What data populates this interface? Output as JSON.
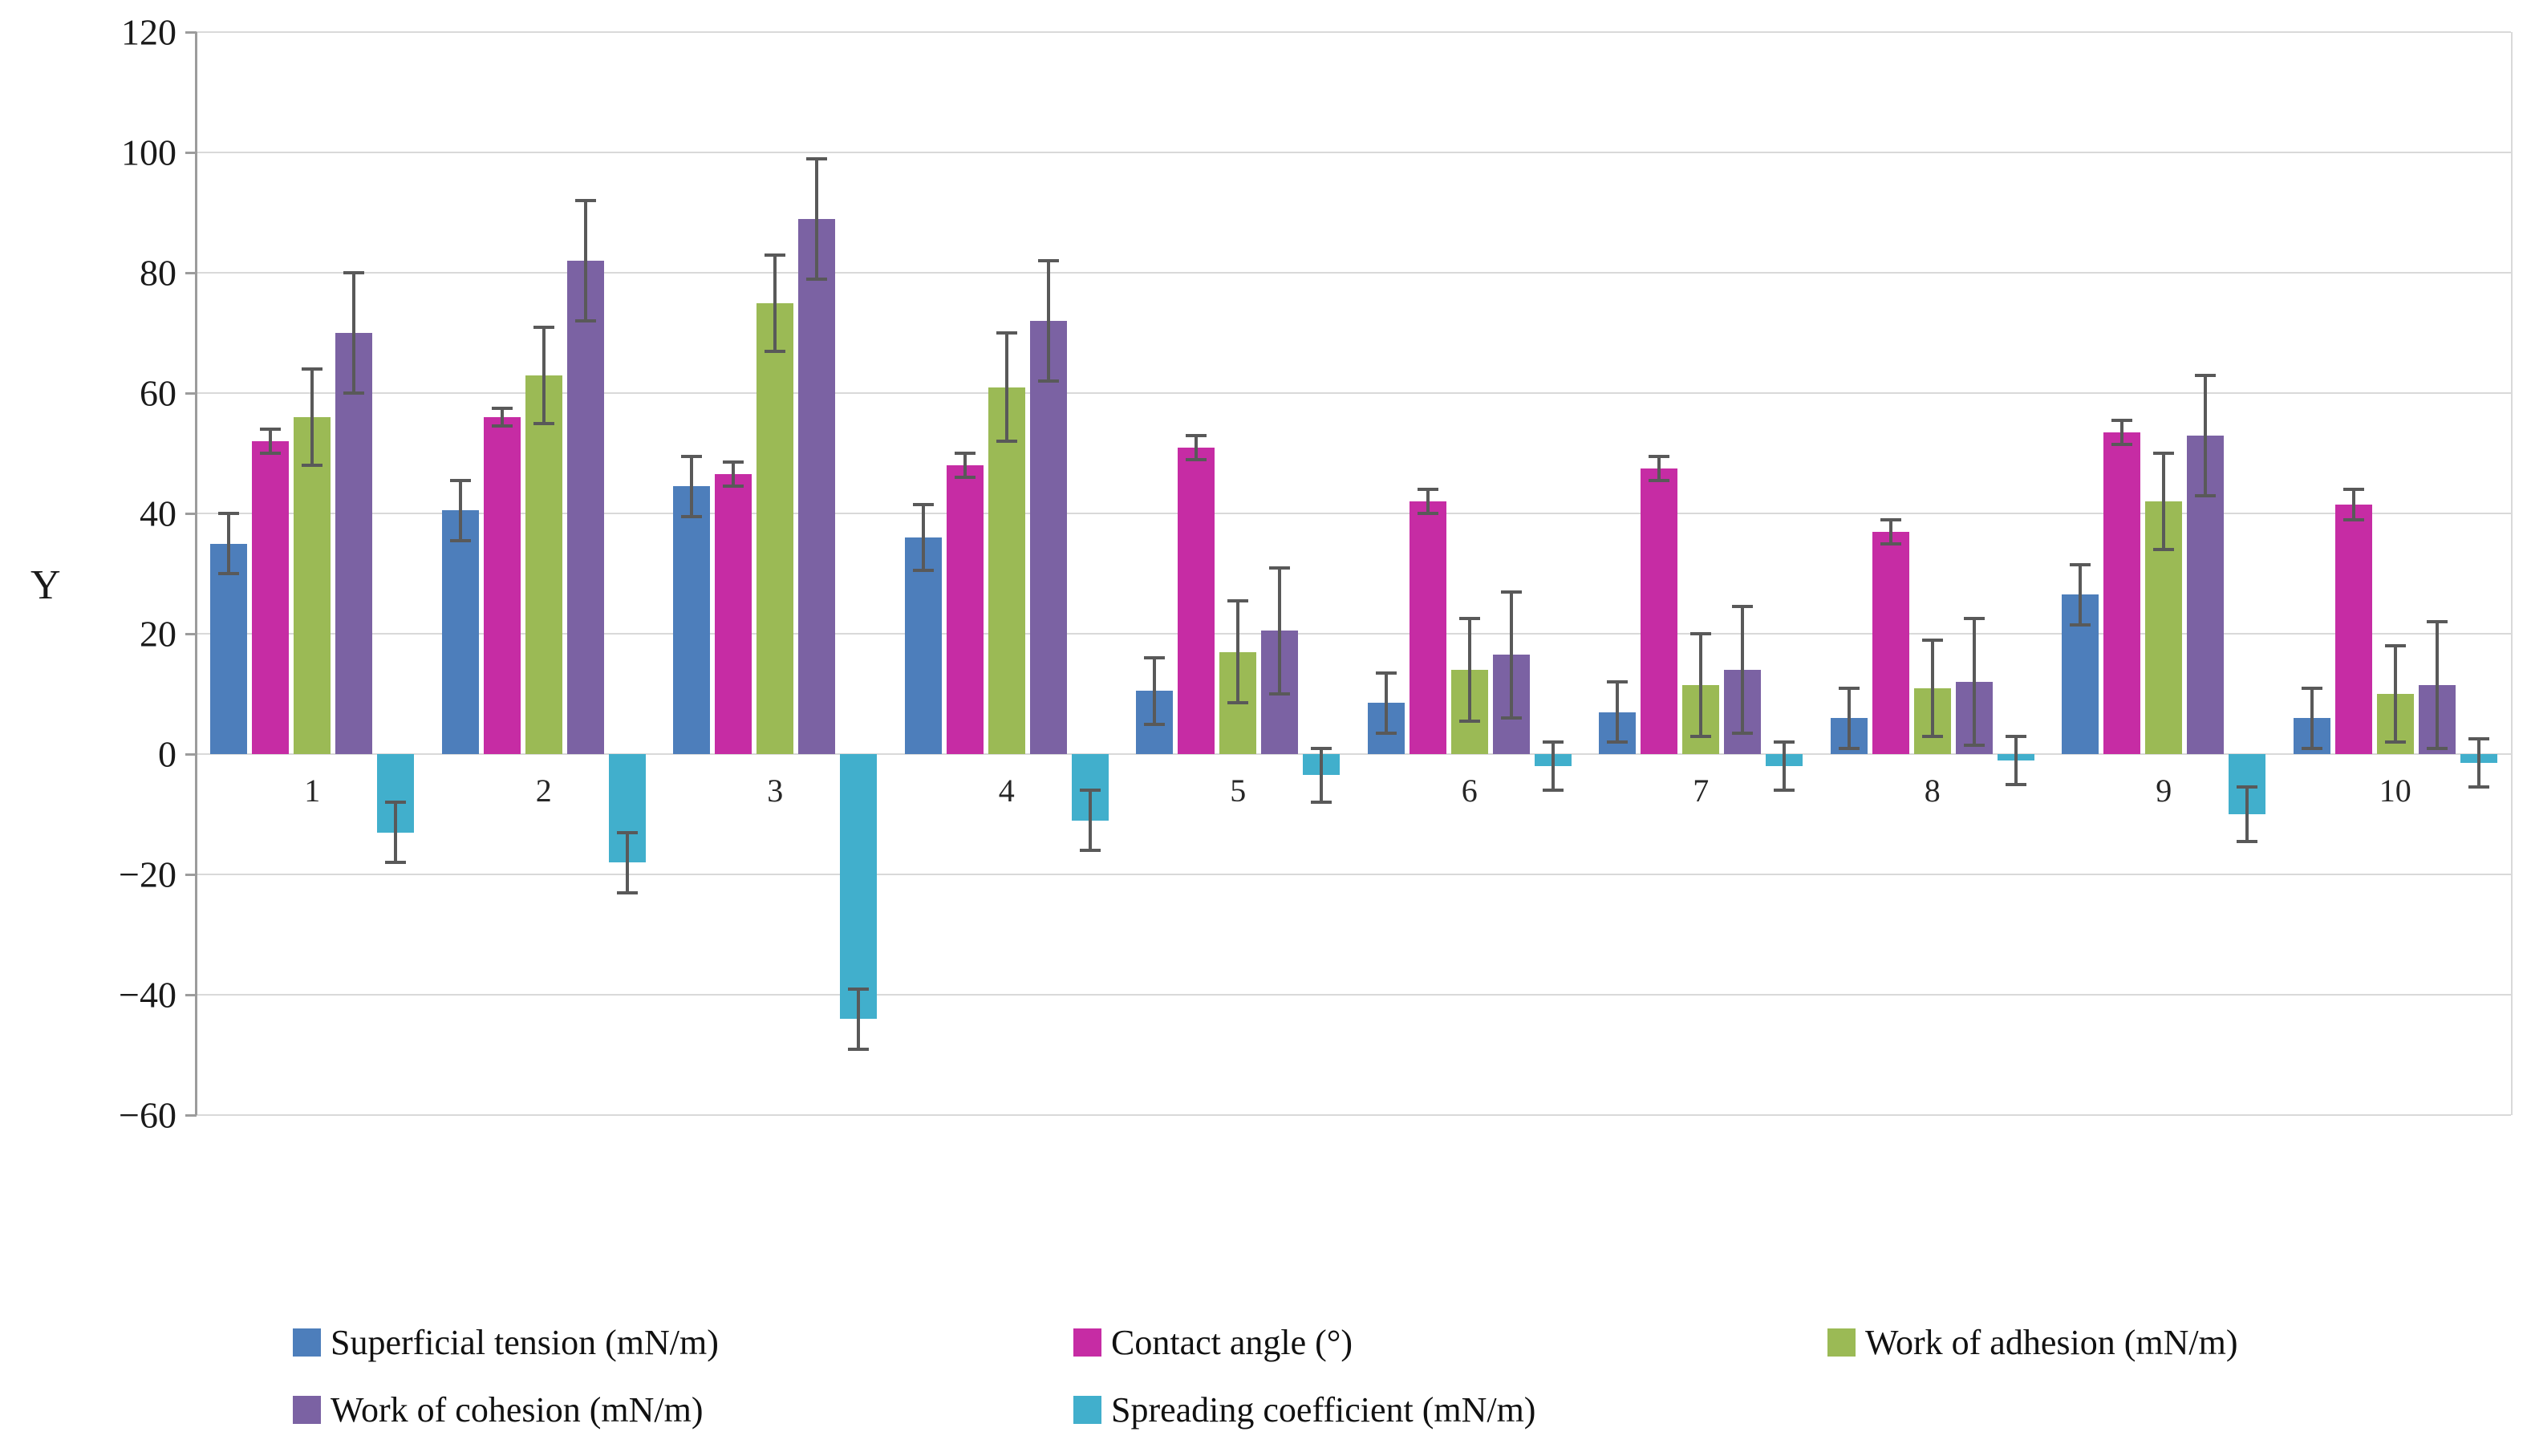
{
  "y_axis": {
    "title": "Y",
    "tick_labels": [
      "120",
      "100",
      "80",
      "60",
      "40",
      "20",
      "0",
      "−20",
      "−40",
      "−60"
    ],
    "min": -60,
    "max": 120,
    "step": 20
  },
  "x_axis": {
    "tick_labels": [
      "1",
      "2",
      "3",
      "4",
      "5",
      "6",
      "7",
      "8",
      "9",
      "10"
    ]
  },
  "colors": {
    "grid": "#d9d9d9",
    "axis": "#9c9c9c",
    "error_bar": "#595959",
    "text": "#1a1a1a",
    "background": "#ffffff"
  },
  "chart_data": {
    "type": "bar",
    "title": "",
    "xlabel": "",
    "ylabel": "Y",
    "ylim": [
      -60,
      120
    ],
    "grid": true,
    "legend_position": "bottom",
    "error_bars": true,
    "categories": [
      "1",
      "2",
      "3",
      "4",
      "5",
      "6",
      "7",
      "8",
      "9",
      "10"
    ],
    "series": [
      {
        "name": "Superficial tension (mN/m)",
        "color": "#4d7ebb",
        "values": [
          35,
          40.5,
          44.5,
          36,
          10.5,
          8.5,
          7,
          6,
          26.5,
          6
        ],
        "errors": [
          5,
          5,
          5,
          5.5,
          5.5,
          5,
          5,
          5,
          5,
          5
        ]
      },
      {
        "name": "Contact angle (°)",
        "color": "#c62ca4",
        "values": [
          52,
          56,
          46.5,
          48,
          51,
          42,
          47.5,
          37,
          53.5,
          41.5
        ],
        "errors": [
          2,
          1.5,
          2,
          2,
          2,
          2,
          2,
          2,
          2,
          2.5
        ]
      },
      {
        "name": "Work of adhesion (mN/m)",
        "color": "#9bba55",
        "values": [
          56,
          63,
          75,
          61,
          17,
          14,
          11.5,
          11,
          42,
          10
        ],
        "errors": [
          8,
          8,
          8,
          9,
          8.5,
          8.5,
          8.5,
          8,
          8,
          8
        ]
      },
      {
        "name": "Work of cohesion (mN/m)",
        "color": "#7b62a3",
        "values": [
          70,
          82,
          89,
          72,
          20.5,
          16.5,
          14,
          12,
          53,
          11.5
        ],
        "errors": [
          10,
          10,
          10,
          10,
          10.5,
          10.5,
          10.5,
          10.5,
          10,
          10.5
        ]
      },
      {
        "name": "Spreading coefficient (mN/m)",
        "color": "#41afcc",
        "values": [
          -13,
          -18,
          -44,
          -11,
          -3.5,
          -2,
          -2,
          -1,
          -10,
          -1.5
        ],
        "errors": [
          5,
          5,
          5,
          5,
          4.5,
          4,
          4,
          4,
          4.5,
          4
        ]
      }
    ]
  }
}
